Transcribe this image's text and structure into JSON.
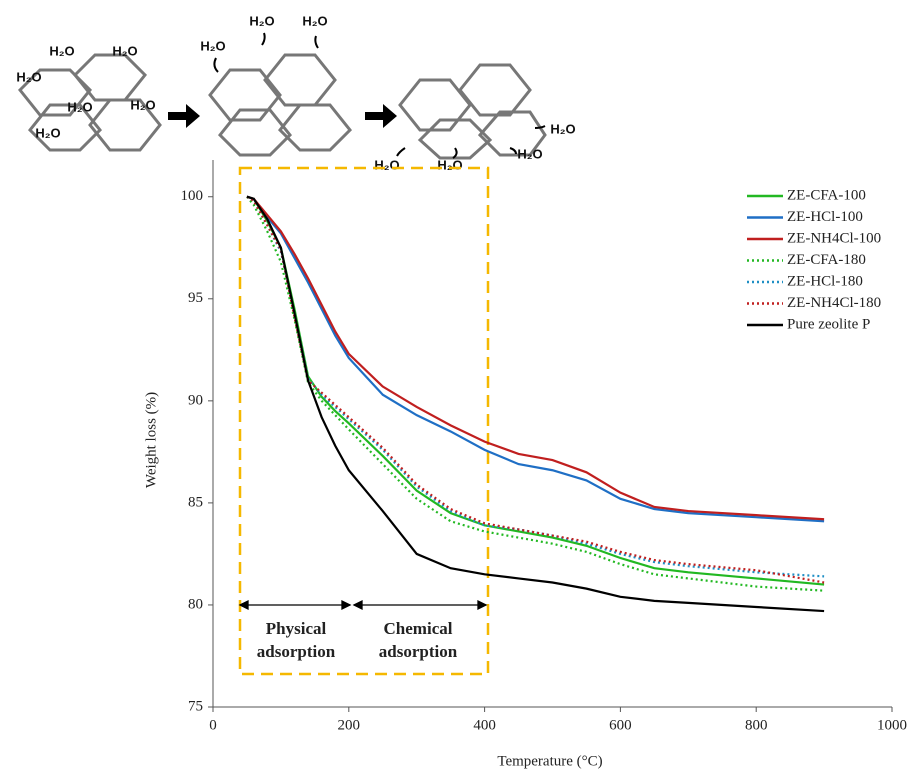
{
  "illustration": {
    "labels": [
      "H₂O",
      "H₂O",
      "H₂O",
      "H₂O",
      "H₂O",
      "H₂O",
      "H₂O",
      "H₂O",
      "H₂O",
      "H₂O",
      "H₂O",
      "H₂O",
      "H₂O"
    ]
  },
  "chart_data": {
    "type": "line",
    "x_label": "Temperature (°C)",
    "y_label": "Weight loss (%)",
    "xlim": [
      0,
      1000
    ],
    "xticks": [
      0,
      200,
      400,
      600,
      800,
      1000
    ],
    "ylim": [
      75,
      101.8
    ],
    "yticks": [
      75,
      80,
      85,
      90,
      95,
      100
    ],
    "legend": "top-right",
    "annotations": [
      [
        "Physical",
        "adsorption"
      ],
      [
        "Chemical",
        "adsorption"
      ]
    ],
    "x": [
      50,
      60,
      80,
      100,
      120,
      140,
      160,
      180,
      200,
      250,
      300,
      350,
      400,
      450,
      500,
      550,
      600,
      650,
      700,
      800,
      900
    ],
    "series": [
      {
        "name": "ZE-CFA-100",
        "color": "#22b822",
        "line_style": "solid",
        "values": [
          100,
          99.9,
          98.8,
          97.5,
          94.5,
          91.2,
          90.2,
          89.5,
          88.9,
          87.3,
          85.6,
          84.5,
          83.9,
          83.6,
          83.3,
          82.9,
          82.3,
          81.8,
          81.6,
          81.3,
          81.0
        ]
      },
      {
        "name": "ZE-HCl-100",
        "color": "#1f6fc5",
        "line_style": "solid",
        "values": [
          100,
          99.9,
          99.0,
          98.2,
          97.0,
          95.8,
          94.5,
          93.2,
          92.1,
          90.3,
          89.3,
          88.5,
          87.6,
          86.9,
          86.6,
          86.1,
          85.2,
          84.7,
          84.5,
          84.3,
          84.1
        ]
      },
      {
        "name": "ZE-NH4Cl-100",
        "color": "#c01f1f",
        "line_style": "solid",
        "values": [
          100,
          99.9,
          99.1,
          98.3,
          97.2,
          96.0,
          94.7,
          93.4,
          92.3,
          90.7,
          89.7,
          88.8,
          88.0,
          87.4,
          87.1,
          86.5,
          85.5,
          84.8,
          84.6,
          84.4,
          84.2
        ]
      },
      {
        "name": "ZE-CFA-180",
        "color": "#22b822",
        "line_style": "dotted",
        "values": [
          100,
          99.6,
          98.3,
          96.8,
          94.0,
          90.9,
          90.0,
          89.3,
          88.6,
          86.9,
          85.2,
          84.1,
          83.6,
          83.3,
          83.0,
          82.6,
          82.0,
          81.5,
          81.3,
          80.9,
          80.7
        ]
      },
      {
        "name": "ZE-HCl-180",
        "color": "#1f8fc5",
        "line_style": "dotted",
        "values": [
          100,
          99.8,
          98.6,
          97.3,
          94.3,
          91.1,
          90.3,
          89.7,
          89.1,
          87.6,
          85.8,
          84.6,
          83.9,
          83.7,
          83.4,
          83.0,
          82.5,
          82.1,
          81.9,
          81.6,
          81.4
        ]
      },
      {
        "name": "ZE-NH4Cl-180",
        "color": "#c01f1f",
        "line_style": "dotted",
        "values": [
          100,
          99.8,
          98.6,
          97.4,
          94.1,
          91.0,
          90.4,
          89.8,
          89.2,
          87.7,
          85.9,
          84.7,
          84.0,
          83.7,
          83.4,
          83.1,
          82.6,
          82.2,
          82.0,
          81.7,
          81.1
        ]
      },
      {
        "name": "Pure zeolite P",
        "color": "#000000",
        "line_style": "solid",
        "values": [
          100,
          99.9,
          98.9,
          97.5,
          94.3,
          91.0,
          89.2,
          87.8,
          86.6,
          84.6,
          82.5,
          81.8,
          81.5,
          81.3,
          81.1,
          80.8,
          80.4,
          80.2,
          80.1,
          79.9,
          79.7
        ]
      }
    ]
  }
}
